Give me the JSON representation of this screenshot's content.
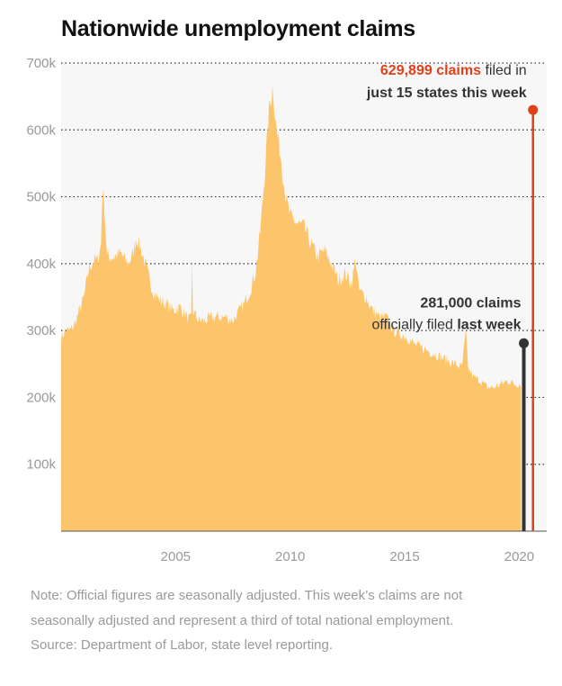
{
  "title": "Nationwide unemployment claims",
  "notes": [
    "Note: Official figures are seasonally adjusted. This week’s claims are not",
    "seasonally adjusted and represent a third of total national employment.",
    "Source: Department of Labor, state level reporting."
  ],
  "colors": {
    "area": "#fcc56b",
    "plot_bg": "#f7f7f7",
    "red": "#e0401a",
    "dark": "#333333",
    "grid": "#333333",
    "tick_text": "#999999"
  },
  "chart_data": {
    "type": "area",
    "title": "Nationwide unemployment claims",
    "xlabel": "",
    "ylabel": "",
    "xlim": [
      2000,
      2021.2
    ],
    "ylim": [
      0,
      700000
    ],
    "grid": true,
    "x_ticks": [
      2005,
      2010,
      2015,
      2020
    ],
    "x_tick_labels": [
      "2005",
      "2010",
      "2015",
      "2020"
    ],
    "y_ticks": [
      100000,
      200000,
      300000,
      400000,
      500000,
      600000,
      700000
    ],
    "y_tick_labels": [
      "100k",
      "200k",
      "300k",
      "400k",
      "500k",
      "600k",
      "700k"
    ],
    "series": [
      {
        "points": [
          [
            2000.0,
            290000
          ],
          [
            2000.2,
            300000
          ],
          [
            2000.4,
            300000
          ],
          [
            2000.6,
            310000
          ],
          [
            2000.8,
            330000
          ],
          [
            2001.0,
            350000
          ],
          [
            2001.2,
            390000
          ],
          [
            2001.4,
            405000
          ],
          [
            2001.6,
            405000
          ],
          [
            2001.75,
            430000
          ],
          [
            2001.8,
            520000
          ],
          [
            2001.9,
            480000
          ],
          [
            2002.0,
            410000
          ],
          [
            2002.3,
            410000
          ],
          [
            2002.6,
            415000
          ],
          [
            2002.9,
            400000
          ],
          [
            2003.1,
            410000
          ],
          [
            2003.3,
            440000
          ],
          [
            2003.5,
            420000
          ],
          [
            2003.7,
            395000
          ],
          [
            2004.0,
            360000
          ],
          [
            2004.3,
            345000
          ],
          [
            2004.6,
            340000
          ],
          [
            2004.9,
            330000
          ],
          [
            2005.2,
            335000
          ],
          [
            2005.5,
            320000
          ],
          [
            2005.7,
            315000
          ],
          [
            2005.72,
            425000
          ],
          [
            2005.75,
            330000
          ],
          [
            2006.0,
            315000
          ],
          [
            2006.3,
            315000
          ],
          [
            2006.6,
            320000
          ],
          [
            2006.9,
            320000
          ],
          [
            2007.2,
            320000
          ],
          [
            2007.5,
            315000
          ],
          [
            2007.8,
            330000
          ],
          [
            2008.0,
            340000
          ],
          [
            2008.3,
            365000
          ],
          [
            2008.5,
            390000
          ],
          [
            2008.7,
            450000
          ],
          [
            2008.9,
            540000
          ],
          [
            2009.1,
            640000
          ],
          [
            2009.25,
            665000
          ],
          [
            2009.4,
            600000
          ],
          [
            2009.6,
            560000
          ],
          [
            2009.8,
            500000
          ],
          [
            2010.0,
            470000
          ],
          [
            2010.3,
            460000
          ],
          [
            2010.6,
            455000
          ],
          [
            2010.9,
            430000
          ],
          [
            2011.2,
            410000
          ],
          [
            2011.5,
            420000
          ],
          [
            2011.8,
            400000
          ],
          [
            2012.1,
            375000
          ],
          [
            2012.4,
            385000
          ],
          [
            2012.7,
            370000
          ],
          [
            2012.85,
            410000
          ],
          [
            2013.0,
            360000
          ],
          [
            2013.3,
            350000
          ],
          [
            2013.6,
            330000
          ],
          [
            2013.9,
            320000
          ],
          [
            2014.2,
            320000
          ],
          [
            2014.5,
            300000
          ],
          [
            2014.8,
            295000
          ],
          [
            2015.1,
            290000
          ],
          [
            2015.4,
            280000
          ],
          [
            2015.7,
            275000
          ],
          [
            2016.0,
            270000
          ],
          [
            2016.3,
            265000
          ],
          [
            2016.6,
            260000
          ],
          [
            2016.9,
            255000
          ],
          [
            2017.2,
            250000
          ],
          [
            2017.5,
            245000
          ],
          [
            2017.68,
            300000
          ],
          [
            2017.75,
            245000
          ],
          [
            2018.0,
            230000
          ],
          [
            2018.3,
            225000
          ],
          [
            2018.6,
            215000
          ],
          [
            2018.9,
            215000
          ],
          [
            2019.2,
            220000
          ],
          [
            2019.5,
            225000
          ],
          [
            2019.8,
            220000
          ],
          [
            2020.0,
            220000
          ],
          [
            2020.08,
            220000
          ]
        ]
      }
    ],
    "annotations": [
      {
        "id": "last_week",
        "x": 2020.2,
        "y": 281000,
        "color": "#333333",
        "line1": "281,000 claims",
        "line2_prefix": "officially filed ",
        "line2_bold": "last week"
      },
      {
        "id": "this_week",
        "x": 2020.6,
        "y": 629899,
        "color": "#e0401a",
        "line1_red": "629,899 claims",
        "line1_rest": " filed in",
        "line2": "just 15 states this week"
      }
    ]
  }
}
